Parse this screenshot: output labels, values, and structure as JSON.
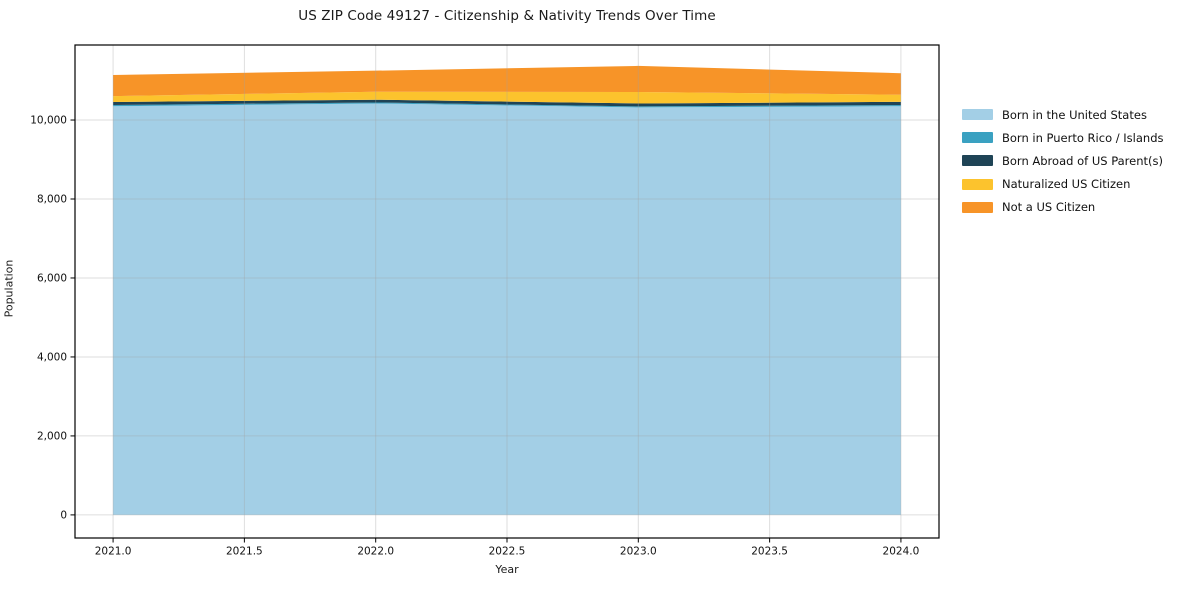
{
  "figure": {
    "background": "#ffffff",
    "spine_color": "#000000",
    "grid_color": "rgba(160,160,160,0.35)"
  },
  "chart_data": {
    "type": "area",
    "stacked": true,
    "title": "US ZIP Code 49127 - Citizenship & Nativity Trends Over Time",
    "xlabel": "Year",
    "ylabel": "Population",
    "grid": true,
    "legend_position": "right-outside",
    "x": [
      2021,
      2022,
      2023,
      2024
    ],
    "series": [
      {
        "name": "Born in the United States",
        "color": "#a3cfe6",
        "values": [
          10350,
          10420,
          10320,
          10350
        ]
      },
      {
        "name": "Born in Puerto Rico / Islands",
        "color": "#3aa1c1",
        "values": [
          30,
          25,
          25,
          30
        ]
      },
      {
        "name": "Born Abroad of US Parent(s)",
        "color": "#1f4456",
        "values": [
          75,
          70,
          75,
          80
        ]
      },
      {
        "name": "Naturalized US Citizen",
        "color": "#fcc32d",
        "values": [
          150,
          200,
          290,
          180
        ]
      },
      {
        "name": "Not a US Citizen",
        "color": "#f79428",
        "values": [
          535,
          535,
          660,
          545
        ]
      }
    ],
    "totals": [
      11140,
      11250,
      11370,
      11185
    ],
    "xlim": [
      2020.855,
      2024.145
    ],
    "ylim": [
      -585,
      11900
    ],
    "x_ticks": [
      {
        "v": 2021.0,
        "label": "2021.0"
      },
      {
        "v": 2021.5,
        "label": "2021.5"
      },
      {
        "v": 2022.0,
        "label": "2022.0"
      },
      {
        "v": 2022.5,
        "label": "2022.5"
      },
      {
        "v": 2023.0,
        "label": "2023.0"
      },
      {
        "v": 2023.5,
        "label": "2023.5"
      },
      {
        "v": 2024.0,
        "label": "2024.0"
      }
    ],
    "y_ticks": [
      {
        "v": 0,
        "label": "0"
      },
      {
        "v": 2000,
        "label": "2,000"
      },
      {
        "v": 4000,
        "label": "4,000"
      },
      {
        "v": 6000,
        "label": "6,000"
      },
      {
        "v": 8000,
        "label": "8,000"
      },
      {
        "v": 10000,
        "label": "10,000"
      }
    ]
  }
}
